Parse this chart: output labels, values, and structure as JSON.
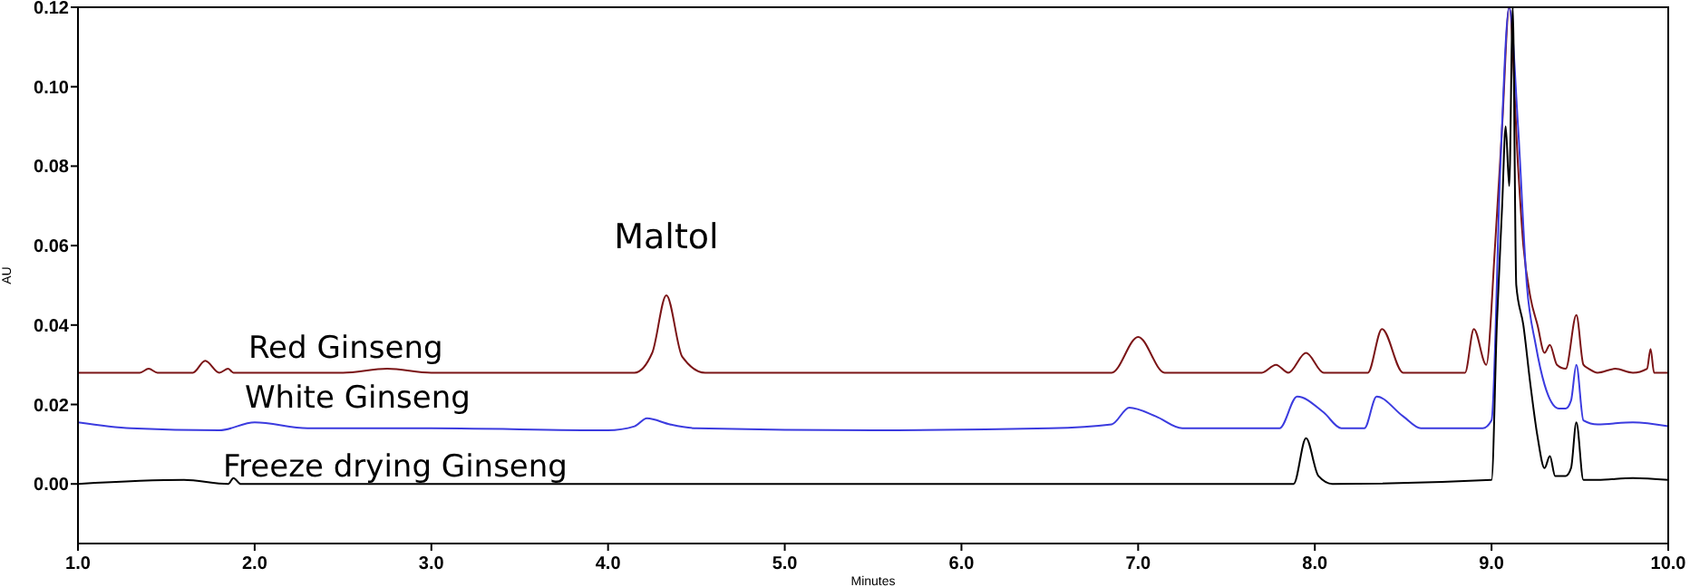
{
  "chart_data": {
    "type": "line",
    "xlabel": "Minutes",
    "ylabel": "AU",
    "xlim": [
      1.0,
      10.0
    ],
    "ylim": [
      -0.015,
      0.12
    ],
    "xticks": [
      {
        "value": 1,
        "label": "1.0"
      },
      {
        "value": 2,
        "label": "2.0"
      },
      {
        "value": 3,
        "label": "3.0"
      },
      {
        "value": 4,
        "label": "4.0"
      },
      {
        "value": 5,
        "label": "5.0"
      },
      {
        "value": 6,
        "label": "6.0"
      },
      {
        "value": 7,
        "label": "7.0"
      },
      {
        "value": 8,
        "label": "8.0"
      },
      {
        "value": 9,
        "label": "9.0"
      },
      {
        "value": 10,
        "label": "10.0"
      }
    ],
    "yticks": [
      {
        "value": 0,
        "label": "0.00"
      },
      {
        "value": 0.02,
        "label": "0.02"
      },
      {
        "value": 0.04,
        "label": "0.04"
      },
      {
        "value": 0.06,
        "label": "0.06"
      },
      {
        "value": 0.08,
        "label": "0.08"
      },
      {
        "value": 0.1,
        "label": "0.10"
      },
      {
        "value": 0.12,
        "label": "0.12"
      }
    ],
    "grid": false,
    "line_style": "solid",
    "annotations": [
      {
        "text": "Maltol",
        "x": 4.33,
        "y": 0.0475
      }
    ],
    "series": [
      {
        "name": "Red Ginseng",
        "color": "#7b1416",
        "x": [
          1.0,
          1.35,
          1.4,
          1.45,
          1.65,
          1.72,
          1.8,
          1.85,
          1.88,
          1.92,
          2.5,
          2.75,
          3.0,
          4.15,
          4.25,
          4.33,
          4.42,
          4.55,
          5.5,
          6.4,
          6.85,
          7.0,
          7.15,
          7.7,
          7.78,
          7.85,
          7.95,
          8.05,
          8.3,
          8.38,
          8.5,
          8.85,
          8.9,
          8.97,
          9.02,
          9.06,
          9.1,
          9.15,
          9.18,
          9.22,
          9.26,
          9.3,
          9.33,
          9.37,
          9.42,
          9.48,
          9.52,
          9.55,
          9.6,
          9.7,
          9.8,
          9.88,
          9.9,
          9.92,
          10.0
        ],
        "values": [
          0.028,
          0.028,
          0.029,
          0.028,
          0.028,
          0.031,
          0.028,
          0.029,
          0.028,
          0.028,
          0.028,
          0.029,
          0.028,
          0.028,
          0.033,
          0.0475,
          0.032,
          0.028,
          0.028,
          0.028,
          0.028,
          0.037,
          0.028,
          0.028,
          0.03,
          0.028,
          0.033,
          0.028,
          0.028,
          0.039,
          0.028,
          0.028,
          0.039,
          0.03,
          0.06,
          0.09,
          0.12,
          0.08,
          0.06,
          0.047,
          0.04,
          0.033,
          0.035,
          0.03,
          0.029,
          0.0425,
          0.03,
          0.029,
          0.028,
          0.029,
          0.028,
          0.029,
          0.034,
          0.028,
          0.028
        ]
      },
      {
        "name": "White Ginseng",
        "color": "#3b3bdf",
        "x": [
          1.0,
          1.3,
          1.8,
          2.0,
          2.3,
          3.0,
          4.0,
          4.15,
          4.22,
          4.35,
          4.5,
          5.5,
          6.5,
          6.85,
          6.95,
          7.1,
          7.25,
          7.8,
          7.9,
          8.05,
          8.15,
          8.28,
          8.35,
          8.5,
          8.6,
          8.95,
          9.0,
          9.05,
          9.1,
          9.15,
          9.2,
          9.25,
          9.3,
          9.38,
          9.42,
          9.45,
          9.48,
          9.52,
          9.6,
          9.8,
          10.0
        ],
        "values": [
          0.0155,
          0.014,
          0.0135,
          0.0155,
          0.014,
          0.014,
          0.0135,
          0.0145,
          0.0165,
          0.015,
          0.014,
          0.0135,
          0.014,
          0.015,
          0.0192,
          0.017,
          0.014,
          0.014,
          0.022,
          0.018,
          0.014,
          0.014,
          0.022,
          0.017,
          0.014,
          0.014,
          0.016,
          0.08,
          0.12,
          0.09,
          0.05,
          0.035,
          0.025,
          0.019,
          0.019,
          0.021,
          0.03,
          0.016,
          0.015,
          0.0155,
          0.0145
        ]
      },
      {
        "name": "Freeze drying Ginseng",
        "color": "#000000",
        "x": [
          1.0,
          1.6,
          1.85,
          1.88,
          1.92,
          3.0,
          4.3,
          5.5,
          7.0,
          7.88,
          7.95,
          8.02,
          8.1,
          9.0,
          9.03,
          9.06,
          9.08,
          9.1,
          9.12,
          9.14,
          9.18,
          9.22,
          9.26,
          9.3,
          9.33,
          9.36,
          9.42,
          9.45,
          9.48,
          9.52,
          9.6,
          9.8,
          10.0
        ],
        "values": [
          0.0,
          0.001,
          0.0,
          0.0015,
          0.0,
          0.0,
          0.0,
          0.0,
          0.0,
          0.0,
          0.0115,
          0.002,
          0.0,
          0.001,
          0.04,
          0.07,
          0.09,
          0.075,
          0.12,
          0.05,
          0.04,
          0.025,
          0.012,
          0.004,
          0.007,
          0.002,
          0.002,
          0.004,
          0.0155,
          0.001,
          0.001,
          0.0015,
          0.001
        ]
      }
    ]
  }
}
